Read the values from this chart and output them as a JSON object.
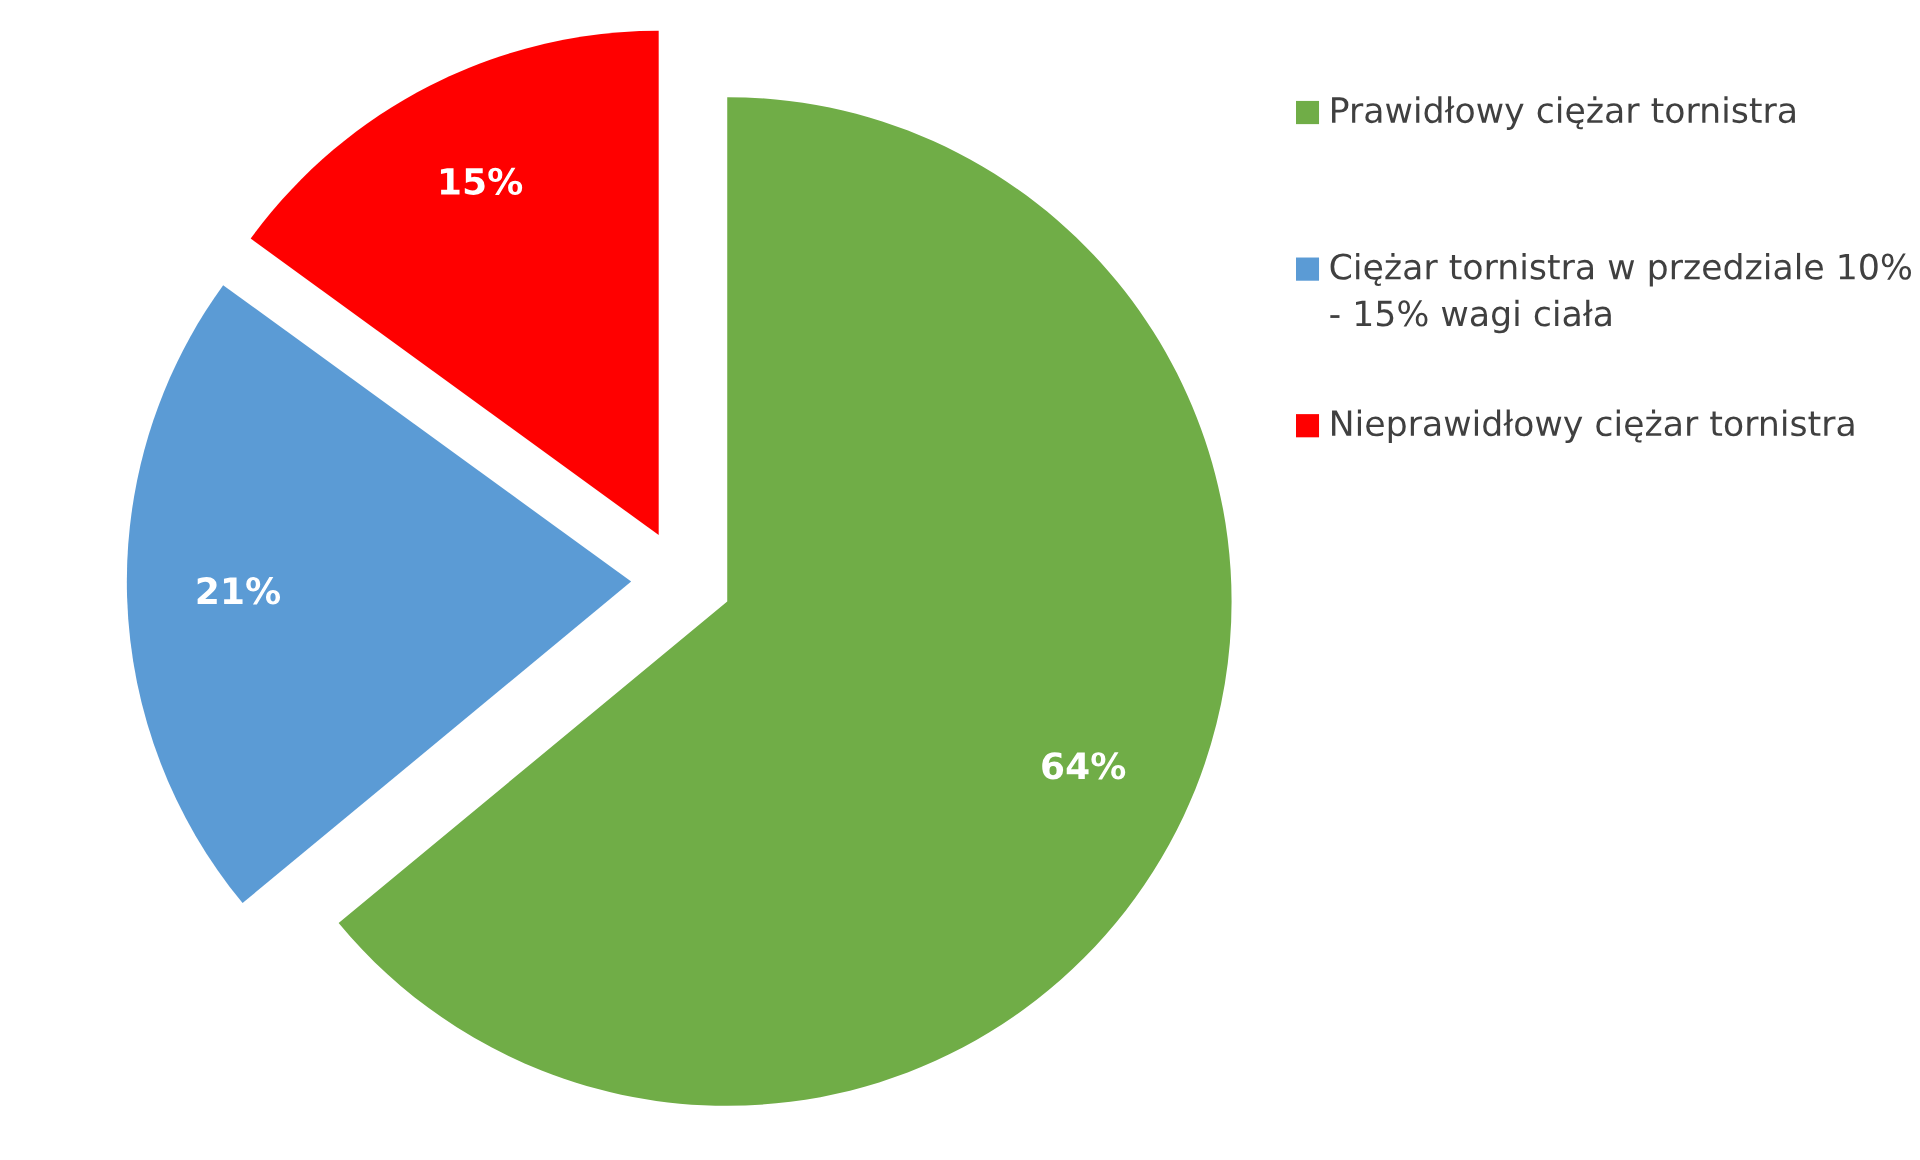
{
  "chart_data": {
    "type": "pie",
    "categories": [
      "Prawidłowy ciężar tornistra",
      "Ciężar tornistra w przedziale 10% - 15% wagi ciała",
      "Nieprawidłowy ciężar tornistra"
    ],
    "values": [
      64,
      21,
      15
    ],
    "colors": [
      "#70ad47",
      "#5b9bd5",
      "#ff0000"
    ],
    "value_labels": [
      "64%",
      "21%",
      "15%"
    ],
    "legend": "top right"
  }
}
